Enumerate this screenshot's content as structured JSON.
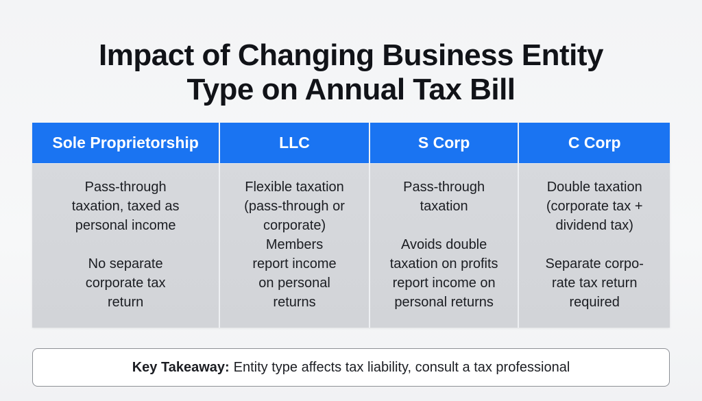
{
  "title": {
    "line1": "Impact of Changing Business Entity",
    "line2": "Type on Annual Tax Bill"
  },
  "colors": {
    "header": "#1a74f2",
    "cell": "#d5d7db"
  },
  "table": {
    "columns": [
      {
        "header": "Sole Proprietorship",
        "lines": [
          "Pass-through",
          "taxation, taxed as",
          "personal income",
          "",
          "No separate",
          "corporate tax",
          "return"
        ]
      },
      {
        "header": "LLC",
        "lines": [
          "Flexible taxation",
          "(pass-through or",
          "corporate)",
          "Members",
          "report income",
          "on personal",
          "returns"
        ]
      },
      {
        "header": "S Corp",
        "lines": [
          "Pass-through",
          "taxation",
          "",
          "Avoids double",
          "taxation on profits",
          "report income on",
          "personal returns"
        ]
      },
      {
        "header": "C Corp",
        "lines": [
          "Double taxation",
          "(corporate tax +",
          "dividend tax)",
          "",
          "Separate corpo-",
          "rate tax return",
          "required"
        ]
      }
    ]
  },
  "takeaway": {
    "label": "Key Takeaway:",
    "text": "Entity type affects tax liability, consult a tax professional"
  }
}
